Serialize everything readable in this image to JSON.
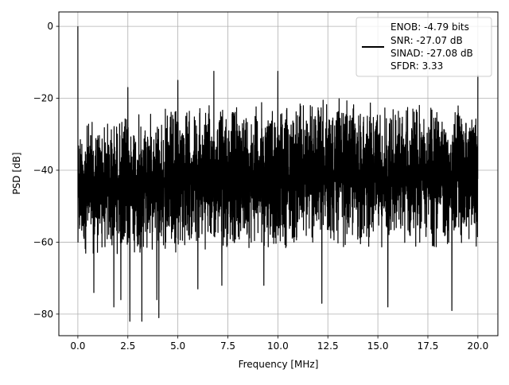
{
  "chart_data": {
    "type": "line",
    "title": "",
    "xlabel": "Frequency [MHz]",
    "ylabel": "PSD [dB]",
    "xlim": [
      -0.95,
      21.0
    ],
    "ylim": [
      -86.0,
      4.0
    ],
    "xticks": [
      0.0,
      2.5,
      5.0,
      7.5,
      10.0,
      12.5,
      15.0,
      17.5,
      20.0
    ],
    "xtick_labels": [
      "0.0",
      "2.5",
      "5.0",
      "7.5",
      "10.0",
      "12.5",
      "15.0",
      "17.5",
      "20.0"
    ],
    "yticks": [
      0,
      -20,
      -40,
      -60,
      -80
    ],
    "ytick_labels": [
      "0",
      "−20",
      "−40",
      "−60",
      "−80"
    ],
    "grid": true,
    "legend_position": "top-right",
    "series": [
      {
        "color": "#000000",
        "noise_floor_envelope": {
          "x": [
            0.0,
            2.5,
            5.0,
            7.5,
            10.0,
            12.5,
            15.0,
            17.5,
            20.0
          ],
          "upper": [
            -26,
            -24,
            -22,
            -21,
            -20,
            -20,
            -20,
            -21,
            -22
          ],
          "lower": [
            -64,
            -64,
            -63,
            -62,
            -62,
            -62,
            -62,
            -62,
            -62
          ]
        },
        "peaks": [
          {
            "x": 0.0,
            "y": 0.0
          },
          {
            "x": 2.5,
            "y": -17.0
          },
          {
            "x": 5.0,
            "y": -15.0
          },
          {
            "x": 6.8,
            "y": -12.5
          },
          {
            "x": 10.0,
            "y": -12.5
          },
          {
            "x": 20.0,
            "y": -13.5
          }
        ],
        "deep_dips": [
          {
            "x": 0.8,
            "y": -74
          },
          {
            "x": 1.8,
            "y": -78
          },
          {
            "x": 2.15,
            "y": -76
          },
          {
            "x": 2.6,
            "y": -82
          },
          {
            "x": 3.2,
            "y": -82
          },
          {
            "x": 3.95,
            "y": -76
          },
          {
            "x": 4.05,
            "y": -81
          },
          {
            "x": 6.0,
            "y": -73
          },
          {
            "x": 7.2,
            "y": -72
          },
          {
            "x": 9.3,
            "y": -72
          },
          {
            "x": 12.2,
            "y": -77
          },
          {
            "x": 15.5,
            "y": -78
          },
          {
            "x": 18.7,
            "y": -79
          }
        ]
      }
    ],
    "legend_text": {
      "enob": "ENOB: -4.79 bits",
      "snr": "SNR: -27.07 dB",
      "sinad": "SINAD: -27.08 dB",
      "sfdr": "SFDR: 3.33"
    }
  }
}
